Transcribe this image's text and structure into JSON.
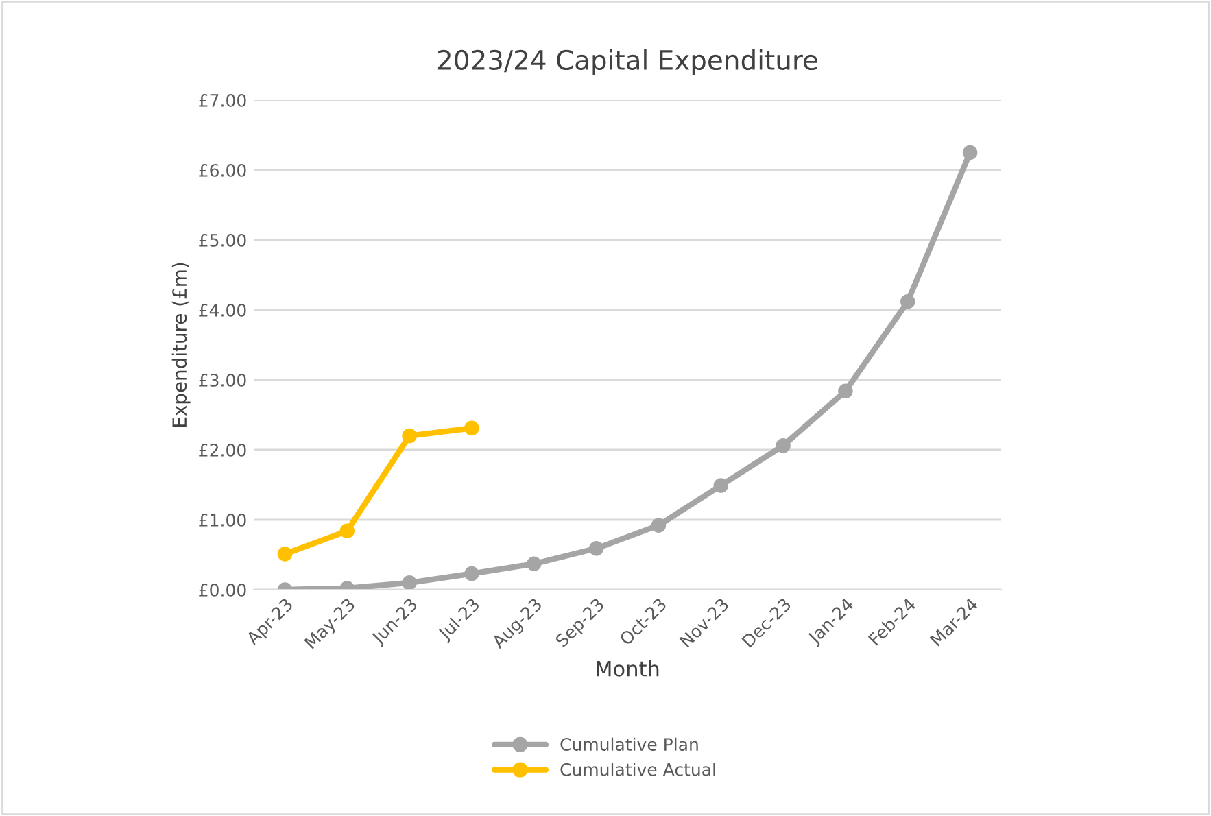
{
  "chart_data": {
    "type": "line",
    "title": "2023/24 Capital Expenditure",
    "xlabel": "Month",
    "ylabel": "Expenditure (£m)",
    "categories": [
      "Apr-23",
      "May-23",
      "Jun-23",
      "Jul-23",
      "Aug-23",
      "Sep-23",
      "Oct-23",
      "Nov-23",
      "Dec-23",
      "Jan-24",
      "Feb-24",
      "Mar-24"
    ],
    "series": [
      {
        "name": "Cumulative Plan",
        "color": "#a5a5a5",
        "values": [
          0.0,
          0.02,
          0.1,
          0.23,
          0.37,
          0.59,
          0.92,
          1.49,
          2.06,
          2.84,
          4.12,
          6.25
        ]
      },
      {
        "name": "Cumulative Actual",
        "color": "#ffc000",
        "values": [
          0.51,
          0.84,
          2.2,
          2.31,
          null,
          null,
          null,
          null,
          null,
          null,
          null,
          null
        ]
      }
    ],
    "ylim": [
      0,
      7
    ],
    "yticks": [
      {
        "value": 0,
        "label": "£0.00"
      },
      {
        "value": 1,
        "label": "£1.00"
      },
      {
        "value": 2,
        "label": "£2.00"
      },
      {
        "value": 3,
        "label": "£3.00"
      },
      {
        "value": 4,
        "label": "£4.00"
      },
      {
        "value": 5,
        "label": "£5.00"
      },
      {
        "value": 6,
        "label": "£6.00"
      },
      {
        "value": 7,
        "label": "£7.00"
      }
    ],
    "grid": "y",
    "legend": "bottom",
    "marker": "circle",
    "line_style": "solid"
  }
}
